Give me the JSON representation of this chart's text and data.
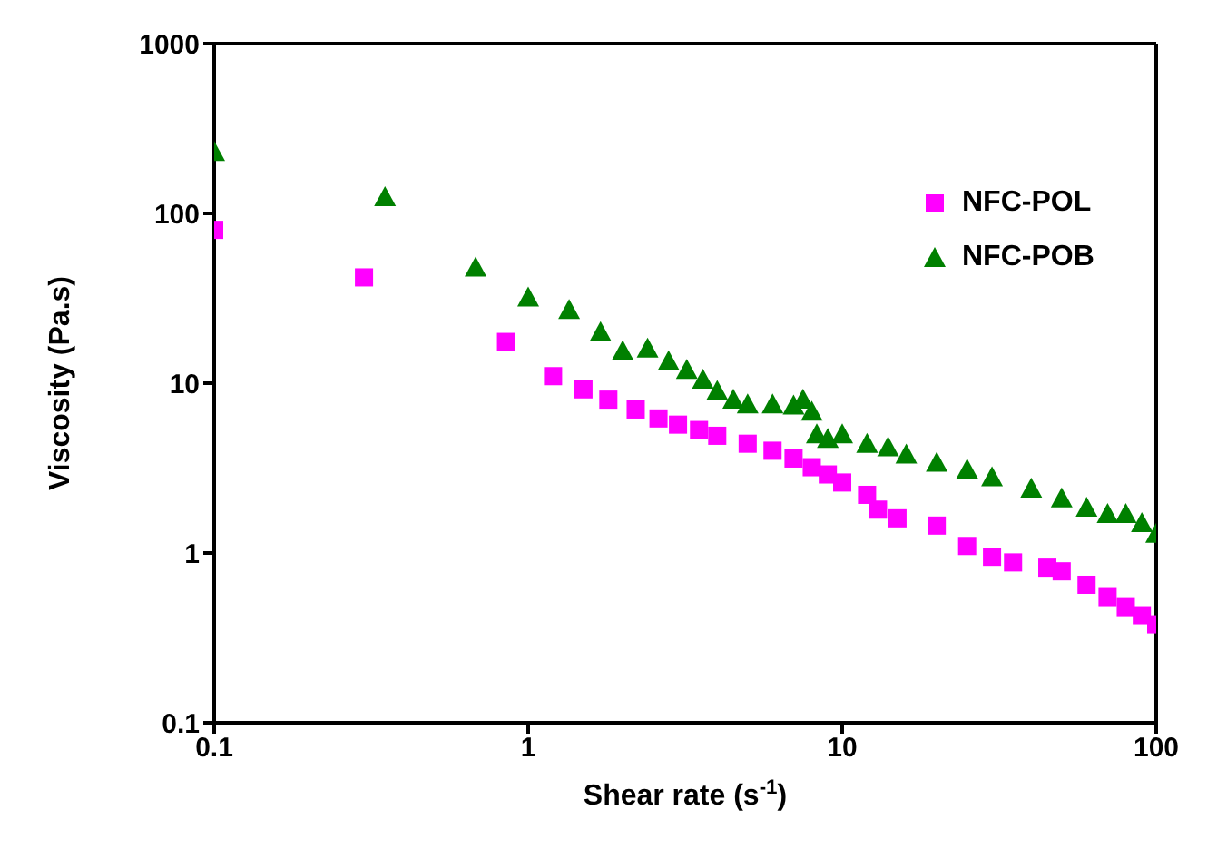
{
  "chart_data": {
    "type": "scatter",
    "xlabel": "Shear rate (s$^{-1}$)",
    "ylabel": "Viscosity (Pa.s)",
    "log": "xy",
    "xlim": [
      0.1,
      100
    ],
    "xticks": [
      0.1,
      1,
      10,
      100
    ],
    "ylim": [
      0.1,
      1000
    ],
    "yticks": [
      0.1,
      1,
      10,
      100,
      1000
    ],
    "grid": false,
    "legend": "top right",
    "series": [
      {
        "name": "NFC-POL",
        "color": "#ff00ff",
        "marker": "square",
        "x": [
          0.1,
          0.3,
          0.85,
          1.2,
          1.5,
          1.8,
          2.2,
          2.6,
          3,
          3.5,
          4,
          5,
          6,
          7,
          8,
          9,
          10,
          12,
          13,
          15,
          20,
          25,
          30,
          35,
          45,
          50,
          60,
          70,
          80,
          90,
          100
        ],
        "values": [
          80,
          42,
          17.5,
          11,
          9.2,
          8,
          7,
          6.2,
          5.7,
          5.3,
          4.9,
          4.4,
          4,
          3.6,
          3.2,
          2.9,
          2.6,
          2.2,
          1.8,
          1.6,
          1.45,
          1.1,
          0.95,
          0.88,
          0.82,
          0.78,
          0.65,
          0.55,
          0.48,
          0.43,
          0.38
        ]
      },
      {
        "name": "NFC-POB",
        "color": "#008000",
        "marker": "triangle",
        "x": [
          0.1,
          0.35,
          0.68,
          1,
          1.35,
          1.7,
          2,
          2.4,
          2.8,
          3.2,
          3.6,
          4,
          4.5,
          5,
          6,
          7,
          7.5,
          8,
          8.3,
          9,
          10,
          12,
          14,
          16,
          20,
          25,
          30,
          40,
          50,
          60,
          70,
          80,
          90,
          100
        ],
        "values": [
          230,
          125,
          48,
          32,
          27,
          20,
          15.5,
          16,
          13.5,
          12,
          10.5,
          9,
          8,
          7.5,
          7.5,
          7.4,
          8,
          6.8,
          5,
          4.7,
          5,
          4.4,
          4.2,
          3.8,
          3.4,
          3.1,
          2.8,
          2.4,
          2.1,
          1.85,
          1.7,
          1.7,
          1.5,
          1.3
        ]
      }
    ]
  }
}
